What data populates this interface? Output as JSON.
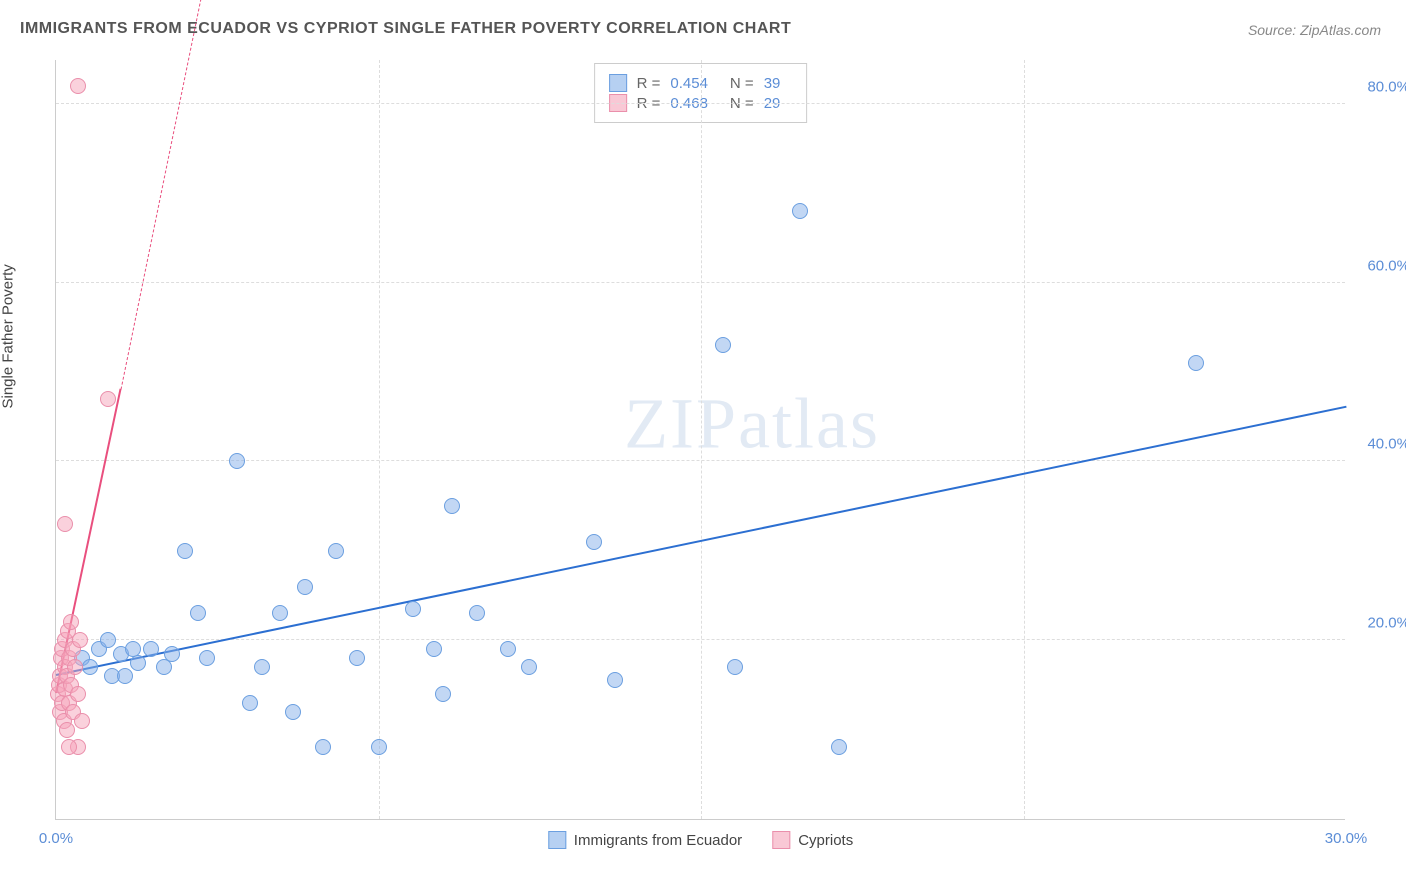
{
  "title": "IMMIGRANTS FROM ECUADOR VS CYPRIOT SINGLE FATHER POVERTY CORRELATION CHART",
  "source_label": "Source: ",
  "source_name": "ZipAtlas.com",
  "ylabel": "Single Father Poverty",
  "watermark_a": "ZIP",
  "watermark_b": "atlas",
  "chart": {
    "type": "scatter",
    "xlim": [
      0,
      30
    ],
    "ylim": [
      0,
      85
    ],
    "xticks": [
      0.0,
      30.0
    ],
    "yticks": [
      20.0,
      40.0,
      60.0,
      80.0
    ],
    "xtick_labels": [
      "0.0%",
      "30.0%"
    ],
    "ytick_labels": [
      "20.0%",
      "40.0%",
      "60.0%",
      "80.0%"
    ],
    "vgrid": [
      7.5,
      15,
      22.5
    ],
    "hgrid": [
      20,
      40,
      60,
      80
    ],
    "background_color": "#ffffff",
    "grid_color": "#dddddd",
    "axis_color": "#cccccc"
  },
  "series": {
    "ecuador": {
      "label": "Immigrants from Ecuador",
      "color_fill": "rgba(134,176,234,0.5)",
      "color_stroke": "#6b9fe0",
      "trend_color": "#2c6fd1",
      "R": "0.454",
      "N": "39",
      "trend_start": [
        0,
        16
      ],
      "trend_end": [
        30,
        46
      ],
      "points": [
        [
          0.6,
          18
        ],
        [
          0.8,
          17
        ],
        [
          1.0,
          19
        ],
        [
          1.2,
          20
        ],
        [
          1.3,
          16
        ],
        [
          1.5,
          18.5
        ],
        [
          1.8,
          19
        ],
        [
          1.9,
          17.5
        ],
        [
          2.2,
          19
        ],
        [
          2.5,
          17
        ],
        [
          2.7,
          18.5
        ],
        [
          3.0,
          30
        ],
        [
          3.3,
          23
        ],
        [
          3.5,
          18
        ],
        [
          4.2,
          40
        ],
        [
          4.5,
          13
        ],
        [
          4.8,
          17
        ],
        [
          5.2,
          23
        ],
        [
          5.5,
          12
        ],
        [
          5.8,
          26
        ],
        [
          6.2,
          8
        ],
        [
          6.5,
          30
        ],
        [
          7.0,
          18
        ],
        [
          7.5,
          8
        ],
        [
          8.3,
          23.5
        ],
        [
          8.8,
          19
        ],
        [
          9.0,
          14
        ],
        [
          9.2,
          35
        ],
        [
          9.8,
          23
        ],
        [
          10.5,
          19
        ],
        [
          11.0,
          17
        ],
        [
          12.5,
          31
        ],
        [
          13.0,
          15.5
        ],
        [
          15.5,
          53
        ],
        [
          15.8,
          17
        ],
        [
          17.3,
          68
        ],
        [
          18.2,
          8
        ],
        [
          26.5,
          51
        ],
        [
          1.6,
          16
        ]
      ]
    },
    "cypriot": {
      "label": "Cypriots",
      "color_fill": "rgba(245,163,185,0.5)",
      "color_stroke": "#ea8fab",
      "trend_color": "#e94f7e",
      "R": "0.468",
      "N": "29",
      "trend_start": [
        0,
        14
      ],
      "trend_end": [
        1.5,
        48
      ],
      "trend_dash_end": [
        3.5,
        95
      ],
      "points": [
        [
          0.05,
          14
        ],
        [
          0.08,
          15
        ],
        [
          0.1,
          16
        ],
        [
          0.1,
          12
        ],
        [
          0.12,
          18
        ],
        [
          0.15,
          13
        ],
        [
          0.15,
          19
        ],
        [
          0.18,
          11
        ],
        [
          0.2,
          17
        ],
        [
          0.2,
          20
        ],
        [
          0.22,
          14.5
        ],
        [
          0.25,
          16
        ],
        [
          0.25,
          10
        ],
        [
          0.28,
          21
        ],
        [
          0.3,
          18
        ],
        [
          0.3,
          13
        ],
        [
          0.35,
          22
        ],
        [
          0.35,
          15
        ],
        [
          0.4,
          19
        ],
        [
          0.4,
          12
        ],
        [
          0.45,
          17
        ],
        [
          0.5,
          8
        ],
        [
          0.5,
          14
        ],
        [
          0.55,
          20
        ],
        [
          0.6,
          11
        ],
        [
          0.2,
          33
        ],
        [
          0.3,
          8
        ],
        [
          1.2,
          47
        ],
        [
          0.5,
          82
        ]
      ]
    }
  },
  "legend_r_label": "R =",
  "legend_n_label": "N ="
}
